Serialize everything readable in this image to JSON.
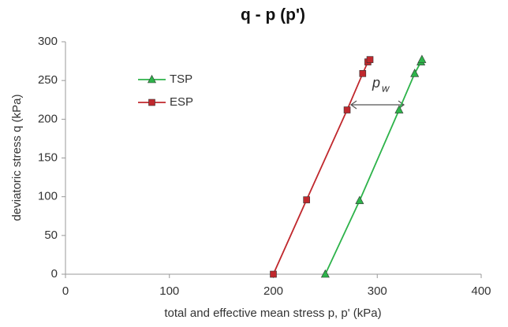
{
  "chart_data": {
    "type": "line",
    "title": "q - p (p')",
    "x_label": "total and effective mean stress p, p' (kPa)",
    "y_label": "deviatoric stress q (kPa)",
    "xlim": [
      0,
      400
    ],
    "xticks": [
      0,
      100,
      200,
      300,
      400
    ],
    "ylim": [
      0,
      300
    ],
    "yticks": [
      0,
      50,
      100,
      150,
      200,
      250,
      300
    ],
    "grid": false,
    "legend": "upper left",
    "annotation": {
      "text": "p",
      "subscript": "w"
    },
    "series": [
      {
        "name": "TSP",
        "color": "#2db34a",
        "marker": "triangle",
        "x": [
          250,
          283,
          321,
          336,
          342,
          343
        ],
        "values": [
          0,
          95,
          212,
          259,
          274,
          277
        ]
      },
      {
        "name": "ESP",
        "color": "#c0282d",
        "marker": "square",
        "x": [
          200,
          232,
          271,
          286,
          291,
          293
        ],
        "values": [
          0,
          96,
          212,
          259,
          274,
          277
        ]
      }
    ]
  }
}
